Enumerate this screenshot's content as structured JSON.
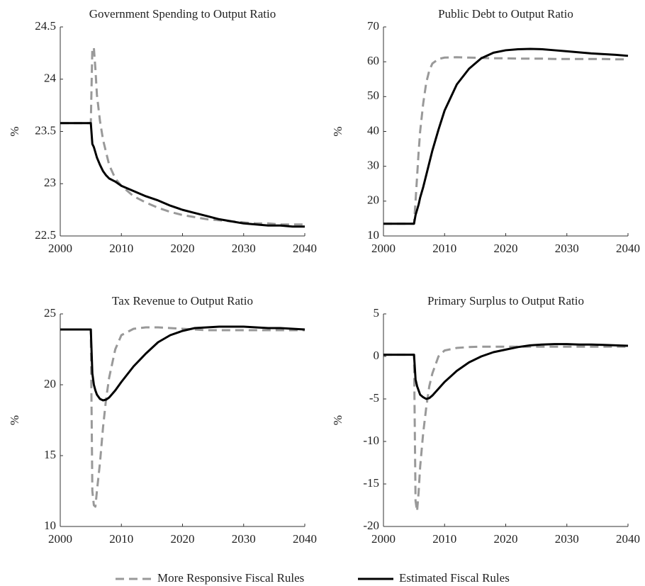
{
  "chart_data": [
    {
      "type": "line",
      "title": "Government Spending to Output Ratio",
      "y_label": "%",
      "x": [
        2000,
        2005,
        2005.25,
        2005.5,
        2005.75,
        2006,
        2006.5,
        2007,
        2007.5,
        2008,
        2009,
        2010,
        2012,
        2014,
        2016,
        2018,
        2020,
        2022,
        2024,
        2026,
        2028,
        2030,
        2032,
        2034,
        2036,
        2038,
        2040
      ],
      "xlim": [
        2000,
        2040
      ],
      "xticks": [
        2000,
        2010,
        2020,
        2030,
        2040
      ],
      "ylim": [
        22.5,
        24.5
      ],
      "yticks": [
        22.5,
        23,
        23.5,
        24,
        24.5
      ],
      "series": [
        {
          "name": "More Responsive Fiscal Rules",
          "color": "#999999",
          "dashed": true,
          "values": [
            23.58,
            23.58,
            24.3,
            24.3,
            24.1,
            23.85,
            23.6,
            23.42,
            23.3,
            23.18,
            23.05,
            22.98,
            22.88,
            22.82,
            22.77,
            22.73,
            22.7,
            22.68,
            22.66,
            22.65,
            22.64,
            22.63,
            22.62,
            22.62,
            22.61,
            22.61,
            22.61
          ]
        },
        {
          "name": "Estimated Fiscal Rules",
          "color": "#000000",
          "dashed": false,
          "values": [
            23.58,
            23.58,
            23.38,
            23.35,
            23.3,
            23.25,
            23.18,
            23.12,
            23.08,
            23.05,
            23.02,
            22.98,
            22.93,
            22.88,
            22.84,
            22.79,
            22.75,
            22.72,
            22.69,
            22.66,
            22.64,
            22.62,
            22.61,
            22.6,
            22.6,
            22.59,
            22.59
          ]
        }
      ]
    },
    {
      "type": "line",
      "title": "Public Debt to Output Ratio",
      "y_label": "%",
      "x": [
        2000,
        2005,
        2005.25,
        2005.5,
        2005.75,
        2006,
        2006.5,
        2007,
        2007.5,
        2008,
        2009,
        2010,
        2012,
        2014,
        2016,
        2018,
        2020,
        2022,
        2024,
        2026,
        2028,
        2030,
        2032,
        2034,
        2036,
        2038,
        2040
      ],
      "xlim": [
        2000,
        2040
      ],
      "xticks": [
        2000,
        2010,
        2020,
        2030,
        2040
      ],
      "ylim": [
        10,
        70
      ],
      "yticks": [
        10,
        20,
        30,
        40,
        50,
        60,
        70
      ],
      "series": [
        {
          "color": "#999999",
          "dashed": true,
          "values": [
            13.5,
            13.5,
            20,
            27,
            34,
            40,
            48,
            54,
            57.5,
            59.5,
            60.8,
            61.2,
            61.3,
            61.2,
            61.1,
            61,
            61,
            60.9,
            60.9,
            60.9,
            60.8,
            60.8,
            60.8,
            60.8,
            60.8,
            60.7,
            60.7
          ]
        },
        {
          "color": "#000000",
          "dashed": false,
          "values": [
            13.5,
            13.5,
            16,
            17.5,
            19,
            21,
            24,
            27.5,
            31,
            34.5,
            40.5,
            46,
            53.5,
            58,
            61,
            62.6,
            63.3,
            63.6,
            63.7,
            63.6,
            63.3,
            63,
            62.7,
            62.4,
            62.2,
            62,
            61.7
          ]
        }
      ]
    },
    {
      "type": "line",
      "title": "Tax Revenue to Output Ratio",
      "y_label": "%",
      "x": [
        2000,
        2005,
        2005.25,
        2005.5,
        2005.75,
        2006,
        2006.5,
        2007,
        2007.5,
        2008,
        2009,
        2010,
        2012,
        2014,
        2016,
        2018,
        2020,
        2022,
        2024,
        2026,
        2028,
        2030,
        2032,
        2034,
        2036,
        2038,
        2040
      ],
      "xlim": [
        2000,
        2040
      ],
      "xticks": [
        2000,
        2010,
        2020,
        2030,
        2040
      ],
      "ylim": [
        10,
        25
      ],
      "yticks": [
        10,
        15,
        20,
        25
      ],
      "series": [
        {
          "color": "#999999",
          "dashed": true,
          "values": [
            23.9,
            23.9,
            12.5,
            11.5,
            11.4,
            12.5,
            14.5,
            17,
            19,
            20.5,
            22.5,
            23.5,
            23.95,
            24.05,
            24.05,
            24,
            23.95,
            23.9,
            23.85,
            23.85,
            23.85,
            23.85,
            23.85,
            23.85,
            23.85,
            23.85,
            23.85
          ]
        },
        {
          "color": "#000000",
          "dashed": false,
          "values": [
            23.9,
            23.9,
            20.8,
            20,
            19.6,
            19.3,
            19,
            18.9,
            18.95,
            19.1,
            19.6,
            20.2,
            21.3,
            22.2,
            23,
            23.5,
            23.8,
            24,
            24.05,
            24.1,
            24.1,
            24.1,
            24.05,
            24,
            24,
            23.95,
            23.9
          ]
        }
      ]
    },
    {
      "type": "line",
      "title": "Primary Surplus to Output Ratio",
      "y_label": "%",
      "x": [
        2000,
        2005,
        2005.25,
        2005.5,
        2005.75,
        2006,
        2006.5,
        2007,
        2007.5,
        2008,
        2009,
        2010,
        2012,
        2014,
        2016,
        2018,
        2020,
        2022,
        2024,
        2026,
        2028,
        2030,
        2032,
        2034,
        2036,
        2038,
        2040
      ],
      "xlim": [
        2000,
        2040
      ],
      "xticks": [
        2000,
        2010,
        2020,
        2030,
        2040
      ],
      "ylim": [
        -20,
        5
      ],
      "yticks": [
        -20,
        -15,
        -10,
        -5,
        0,
        5
      ],
      "series": [
        {
          "color": "#999999",
          "dashed": true,
          "values": [
            0.2,
            0.2,
            -17,
            -18.2,
            -16,
            -13,
            -9,
            -6,
            -3.5,
            -2,
            0,
            0.7,
            1,
            1.1,
            1.15,
            1.15,
            1.15,
            1.15,
            1.15,
            1.15,
            1.15,
            1.15,
            1.15,
            1.15,
            1.15,
            1.15,
            1.15
          ]
        },
        {
          "color": "#000000",
          "dashed": false,
          "values": [
            0.2,
            0.2,
            -2.7,
            -3.5,
            -4,
            -4.5,
            -4.8,
            -5,
            -4.9,
            -4.6,
            -3.8,
            -3,
            -1.7,
            -0.7,
            0,
            0.5,
            0.8,
            1.1,
            1.3,
            1.4,
            1.45,
            1.45,
            1.4,
            1.4,
            1.35,
            1.3,
            1.25
          ]
        }
      ]
    }
  ]
}
